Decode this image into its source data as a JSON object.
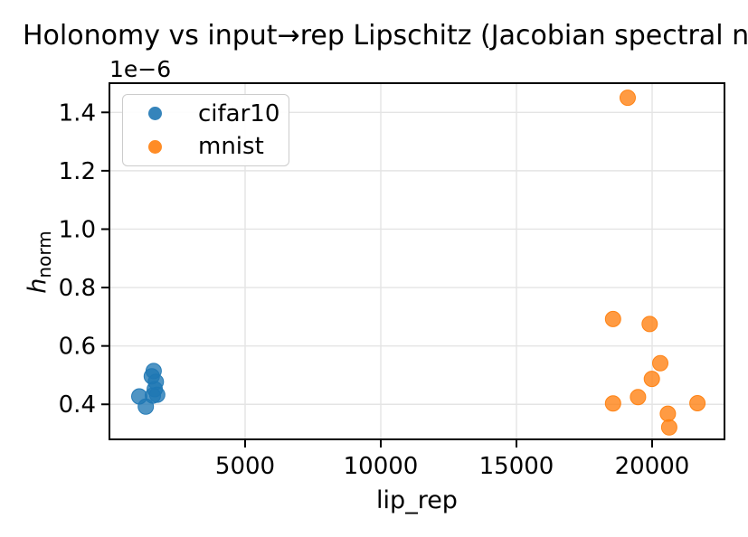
{
  "chart_data": {
    "type": "scatter",
    "title": "Holonomy vs input→rep Lipschitz (Jacobian spectral n",
    "xlabel": "lip_rep",
    "ylabel_main": "h",
    "ylabel_sub": "norm",
    "y_offset_label": "1e−6",
    "grid": true,
    "legend_position": "upper left",
    "xlim": [
      0,
      22667
    ],
    "ylim": [
      0.28,
      1.5
    ],
    "xticks": [
      5000,
      10000,
      15000,
      20000
    ],
    "yticks": [
      0.4,
      0.6,
      0.8,
      1.0,
      1.2,
      1.4
    ],
    "colors": {
      "grid": "#e4e4e4",
      "spine": "#000000",
      "cifar10": "#1f77b4",
      "mnist": "#ff7f0e"
    },
    "marker_opacity": 0.78,
    "series": [
      {
        "name": "cifar10",
        "color": "#1f77b4",
        "points": [
          [
            1630,
            0.514
          ],
          [
            1560,
            0.496
          ],
          [
            1710,
            0.477
          ],
          [
            1670,
            0.452
          ],
          [
            1100,
            0.427
          ],
          [
            1760,
            0.433
          ],
          [
            1600,
            0.43
          ],
          [
            1340,
            0.392
          ]
        ]
      },
      {
        "name": "mnist",
        "color": "#ff7f0e",
        "points": [
          [
            19100,
            1.45
          ],
          [
            18560,
            0.692
          ],
          [
            19910,
            0.675
          ],
          [
            20300,
            0.541
          ],
          [
            19990,
            0.487
          ],
          [
            19480,
            0.425
          ],
          [
            18560,
            0.403
          ],
          [
            21670,
            0.404
          ],
          [
            20580,
            0.368
          ],
          [
            20630,
            0.321
          ]
        ]
      }
    ]
  }
}
